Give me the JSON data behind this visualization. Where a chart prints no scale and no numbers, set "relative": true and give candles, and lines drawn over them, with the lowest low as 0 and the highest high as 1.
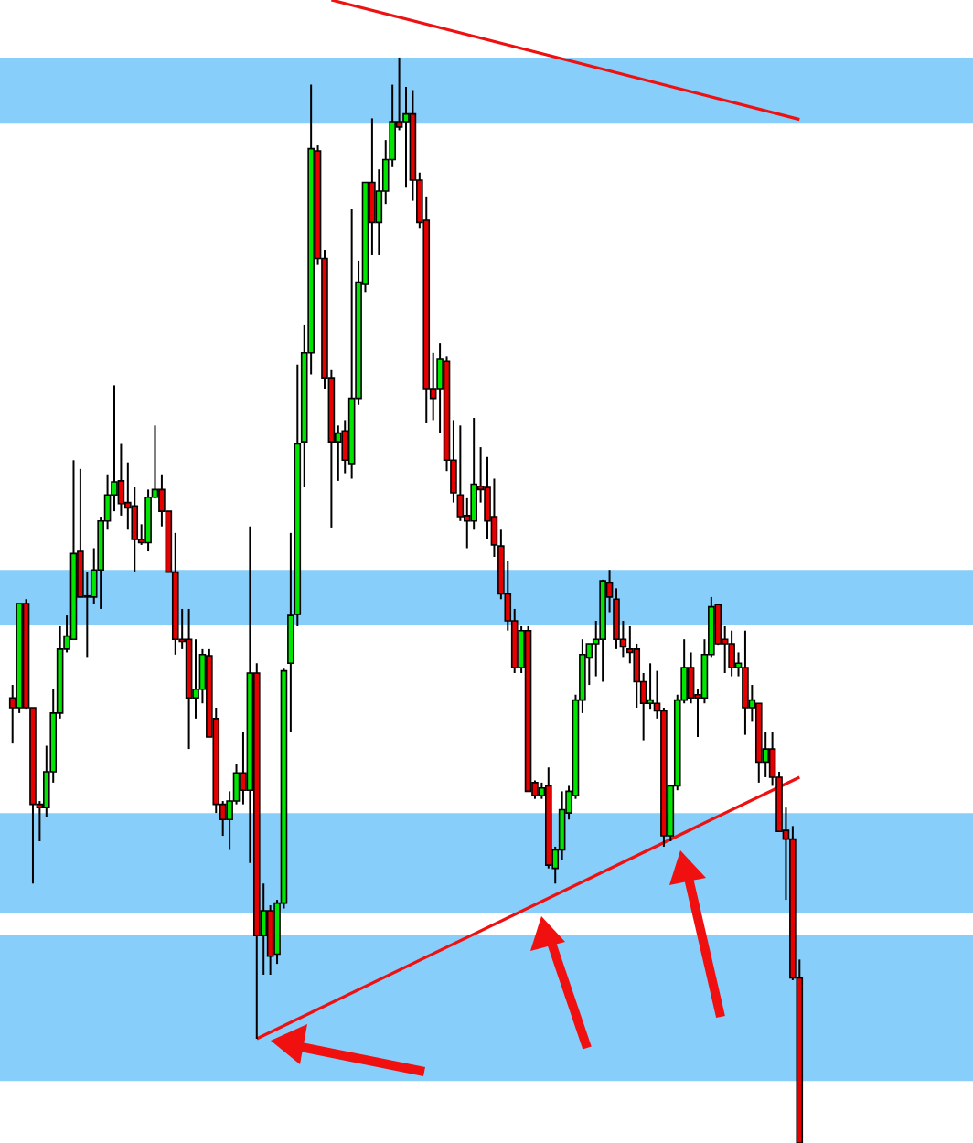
{
  "chart_data": {
    "type": "candlestick",
    "relative": true,
    "categories": [
      null,
      null,
      null,
      null,
      null,
      null,
      null,
      null,
      null,
      null,
      null,
      null,
      null,
      null,
      null,
      null,
      null,
      null,
      null,
      null,
      null,
      null,
      null,
      null,
      null,
      null,
      null,
      null,
      null,
      null,
      null,
      null,
      null,
      null,
      null,
      null,
      null,
      null,
      null,
      null,
      null,
      null,
      null,
      null,
      null,
      null,
      null,
      null,
      null,
      null,
      null,
      null,
      null,
      null,
      null,
      null,
      null,
      null,
      null,
      null,
      null,
      null,
      null,
      null,
      null,
      null,
      null,
      null,
      null,
      null,
      null,
      null,
      null,
      null,
      null,
      null,
      null,
      null,
      null,
      null,
      null,
      null,
      null,
      null,
      null,
      null,
      null,
      null,
      null,
      null,
      null,
      null,
      null,
      null,
      null,
      null,
      null,
      null,
      null,
      null,
      null,
      null,
      null,
      null,
      null,
      null,
      null,
      null,
      null,
      null,
      null,
      null,
      null,
      null,
      null,
      null,
      null
    ],
    "ohlc": [
      [
        0.41,
        0.422,
        0.368,
        0.401
      ],
      [
        0.401,
        0.497,
        0.396,
        0.497
      ],
      [
        0.497,
        0.501,
        0.4,
        0.401
      ],
      [
        0.401,
        0.401,
        0.239,
        0.312
      ],
      [
        0.312,
        0.315,
        0.278,
        0.309
      ],
      [
        0.309,
        0.366,
        0.3,
        0.342
      ],
      [
        0.342,
        0.418,
        0.332,
        0.396
      ],
      [
        0.396,
        0.476,
        0.391,
        0.455
      ],
      [
        0.455,
        0.486,
        0.452,
        0.467
      ],
      [
        0.464,
        0.629,
        0.464,
        0.543
      ],
      [
        0.545,
        0.621,
        0.503,
        0.503
      ],
      [
        0.504,
        0.526,
        0.447,
        0.503
      ],
      [
        0.503,
        0.548,
        0.497,
        0.528
      ],
      [
        0.528,
        0.577,
        0.492,
        0.573
      ],
      [
        0.573,
        0.616,
        0.565,
        0.597
      ],
      [
        0.597,
        0.698,
        0.582,
        0.609
      ],
      [
        0.61,
        0.644,
        0.578,
        0.589
      ],
      [
        0.59,
        0.627,
        0.565,
        0.585
      ],
      [
        0.587,
        0.604,
        0.526,
        0.556
      ],
      [
        0.556,
        0.57,
        0.551,
        0.553
      ],
      [
        0.553,
        0.602,
        0.545,
        0.595
      ],
      [
        0.595,
        0.661,
        0.594,
        0.602
      ],
      [
        0.602,
        0.616,
        0.568,
        0.582
      ],
      [
        0.582,
        0.582,
        0.526,
        0.526
      ],
      [
        0.526,
        0.562,
        0.45,
        0.464
      ],
      [
        0.464,
        0.492,
        0.455,
        0.462
      ],
      [
        0.464,
        0.492,
        0.363,
        0.41
      ],
      [
        0.41,
        0.464,
        0.391,
        0.418
      ],
      [
        0.418,
        0.455,
        0.405,
        0.45
      ],
      [
        0.449,
        0.455,
        0.374,
        0.374
      ],
      [
        0.391,
        0.401,
        0.304,
        0.312
      ],
      [
        0.312,
        0.315,
        0.283,
        0.298
      ],
      [
        0.298,
        0.324,
        0.27,
        0.315
      ],
      [
        0.315,
        0.349,
        0.312,
        0.341
      ],
      [
        0.341,
        0.379,
        0.312,
        0.325
      ],
      [
        0.325,
        0.568,
        0.258,
        0.433
      ],
      [
        0.433,
        0.442,
        0.096,
        0.191
      ],
      [
        0.191,
        0.239,
        0.155,
        0.214
      ],
      [
        0.214,
        0.219,
        0.155,
        0.172
      ],
      [
        0.174,
        0.224,
        0.165,
        0.221
      ],
      [
        0.221,
        0.437,
        0.216,
        0.435
      ],
      [
        0.442,
        0.562,
        0.379,
        0.486
      ],
      [
        0.487,
        0.717,
        0.476,
        0.644
      ],
      [
        0.646,
        0.754,
        0.604,
        0.728
      ],
      [
        0.728,
        0.975,
        0.708,
        0.916
      ],
      [
        0.914,
        0.919,
        0.809,
        0.815
      ],
      [
        0.815,
        0.823,
        0.695,
        0.705
      ],
      [
        0.705,
        0.712,
        0.567,
        0.646
      ],
      [
        0.646,
        0.661,
        0.61,
        0.654
      ],
      [
        0.656,
        0.666,
        0.617,
        0.629
      ],
      [
        0.626,
        0.86,
        0.612,
        0.686
      ],
      [
        0.686,
        0.813,
        0.68,
        0.793
      ],
      [
        0.791,
        0.885,
        0.784,
        0.885
      ],
      [
        0.885,
        0.944,
        0.818,
        0.848
      ],
      [
        0.848,
        0.897,
        0.818,
        0.877
      ],
      [
        0.877,
        0.924,
        0.865,
        0.906
      ],
      [
        0.906,
        0.975,
        0.899,
        0.941
      ],
      [
        0.941,
        1.0,
        0.933,
        0.936
      ],
      [
        0.941,
        0.973,
        0.88,
        0.948
      ],
      [
        0.948,
        0.97,
        0.868,
        0.887
      ],
      [
        0.887,
        0.894,
        0.843,
        0.848
      ],
      [
        0.85,
        0.872,
        0.663,
        0.695
      ],
      [
        0.695,
        0.728,
        0.666,
        0.686
      ],
      [
        0.695,
        0.737,
        0.654,
        0.722
      ],
      [
        0.72,
        0.725,
        0.619,
        0.629
      ],
      [
        0.629,
        0.666,
        0.59,
        0.599
      ],
      [
        0.597,
        0.661,
        0.573,
        0.577
      ],
      [
        0.578,
        0.594,
        0.548,
        0.573
      ],
      [
        0.573,
        0.668,
        0.565,
        0.607
      ],
      [
        0.605,
        0.641,
        0.59,
        0.602
      ],
      [
        0.604,
        0.632,
        0.556,
        0.573
      ],
      [
        0.577,
        0.612,
        0.54,
        0.551
      ],
      [
        0.55,
        0.565,
        0.501,
        0.506
      ],
      [
        0.506,
        0.536,
        0.472,
        0.481
      ],
      [
        0.481,
        0.492,
        0.433,
        0.438
      ],
      [
        0.438,
        0.476,
        0.433,
        0.472
      ],
      [
        0.472,
        0.476,
        0.324,
        0.324
      ],
      [
        0.332,
        0.334,
        0.317,
        0.32
      ],
      [
        0.32,
        0.332,
        0.317,
        0.327
      ],
      [
        0.329,
        0.346,
        0.253,
        0.256
      ],
      [
        0.253,
        0.273,
        0.239,
        0.27
      ],
      [
        0.27,
        0.324,
        0.261,
        0.307
      ],
      [
        0.304,
        0.329,
        0.298,
        0.324
      ],
      [
        0.32,
        0.413,
        0.317,
        0.408
      ],
      [
        0.408,
        0.464,
        0.396,
        0.45
      ],
      [
        0.447,
        0.46,
        0.422,
        0.46
      ],
      [
        0.46,
        0.481,
        0.43,
        0.464
      ],
      [
        0.464,
        0.519,
        0.425,
        0.518
      ],
      [
        0.516,
        0.528,
        0.489,
        0.503
      ],
      [
        0.501,
        0.511,
        0.455,
        0.464
      ],
      [
        0.464,
        0.481,
        0.447,
        0.457
      ],
      [
        0.455,
        0.476,
        0.442,
        0.452
      ],
      [
        0.455,
        0.46,
        0.401,
        0.425
      ],
      [
        0.425,
        0.433,
        0.371,
        0.405
      ],
      [
        0.405,
        0.442,
        0.4,
        0.408
      ],
      [
        0.405,
        0.435,
        0.391,
        0.398
      ],
      [
        0.398,
        0.401,
        0.273,
        0.283
      ],
      [
        0.283,
        0.329,
        0.278,
        0.329
      ],
      [
        0.329,
        0.413,
        0.325,
        0.408
      ],
      [
        0.408,
        0.464,
        0.405,
        0.438
      ],
      [
        0.438,
        0.452,
        0.405,
        0.41
      ],
      [
        0.413,
        0.418,
        0.374,
        0.41
      ],
      [
        0.41,
        0.464,
        0.405,
        0.45
      ],
      [
        0.45,
        0.503,
        0.447,
        0.494
      ],
      [
        0.496,
        0.497,
        0.459,
        0.46
      ],
      [
        0.464,
        0.476,
        0.433,
        0.46
      ],
      [
        0.46,
        0.472,
        0.43,
        0.438
      ],
      [
        0.438,
        0.452,
        0.43,
        0.442
      ],
      [
        0.438,
        0.472,
        0.376,
        0.401
      ],
      [
        0.401,
        0.422,
        0.388,
        0.408
      ],
      [
        0.405,
        0.405,
        0.332,
        0.351
      ],
      [
        0.351,
        0.379,
        0.337,
        0.363
      ],
      [
        0.363,
        0.379,
        0.329,
        0.337
      ],
      [
        0.337,
        0.342,
        0.287,
        0.287
      ],
      [
        0.288,
        0.309,
        0.224,
        0.28
      ],
      [
        0.28,
        0.292,
        0.15,
        0.152
      ],
      [
        0.152,
        0.169,
        0.0,
        0.0
      ]
    ],
    "colors": [
      "#e60000",
      "#00e600",
      "#e60000",
      "#e60000",
      "#e60000",
      "#00e600",
      "#00e600",
      "#00e600",
      "#00e600",
      "#00e600",
      "#e60000",
      "#e60000",
      "#00e600",
      "#00e600",
      "#00e600",
      "#00e600",
      "#e60000",
      "#e60000",
      "#e60000",
      "#e60000",
      "#00e600",
      "#00e600",
      "#e60000",
      "#e60000",
      "#e60000",
      "#e60000",
      "#e60000",
      "#00e600",
      "#00e600",
      "#e60000",
      "#e60000",
      "#e60000",
      "#00e600",
      "#00e600",
      "#e60000",
      "#00e600",
      "#e60000",
      "#00e600",
      "#e60000",
      "#00e600",
      "#00e600",
      "#00e600",
      "#00e600",
      "#00e600",
      "#00e600",
      "#e60000",
      "#e60000",
      "#e60000",
      "#00e600",
      "#e60000",
      "#00e600",
      "#00e600",
      "#00e600",
      "#e60000",
      "#00e600",
      "#00e600",
      "#00e600",
      "#e60000",
      "#00e600",
      "#e60000",
      "#e60000",
      "#e60000",
      "#e60000",
      "#00e600",
      "#e60000",
      "#e60000",
      "#e60000",
      "#e60000",
      "#00e600",
      "#e60000",
      "#e60000",
      "#e60000",
      "#e60000",
      "#e60000",
      "#e60000",
      "#00e600",
      "#e60000",
      "#e60000",
      "#00e600",
      "#e60000",
      "#00e600",
      "#00e600",
      "#00e600",
      "#00e600",
      "#00e600",
      "#00e600",
      "#00e600",
      "#00e600",
      "#e60000",
      "#e60000",
      "#e60000",
      "#e60000",
      "#e60000",
      "#e60000",
      "#00e600",
      "#e60000",
      "#e60000",
      "#00e600",
      "#00e600",
      "#00e600",
      "#e60000",
      "#e60000",
      "#00e600",
      "#00e600",
      "#e60000",
      "#e60000",
      "#e60000",
      "#00e600",
      "#e60000",
      "#00e600",
      "#e60000",
      "#00e600",
      "#e60000",
      "#e60000",
      "#e60000",
      "#e60000",
      "#e60000"
    ],
    "series": [
      {
        "type": "line",
        "color": "#ee1111",
        "values": [
          null,
          null,
          null,
          null,
          null,
          null,
          null,
          null,
          null,
          null,
          null,
          null,
          null,
          null,
          null,
          null,
          null,
          null,
          null,
          null,
          null,
          null,
          null,
          null,
          null,
          null,
          null,
          null,
          null,
          null,
          null,
          null,
          null,
          null,
          null,
          null,
          null,
          null,
          null,
          null,
          null,
          null,
          null,
          null,
          null,
          null,
          null,
          1.053,
          null,
          null,
          null,
          null,
          null,
          null,
          null,
          null,
          null,
          null,
          null,
          null,
          null,
          null,
          null,
          null,
          null,
          null,
          null,
          null,
          null,
          null,
          null,
          null,
          null,
          null,
          null,
          null,
          null,
          null,
          null,
          null,
          null,
          null,
          null,
          null,
          null,
          null,
          null,
          null,
          null,
          null,
          null,
          null,
          null,
          null,
          null,
          null,
          null,
          null,
          null,
          null,
          null,
          null,
          null,
          null,
          null,
          null,
          null,
          null,
          null,
          null,
          null,
          null,
          null,
          null,
          null,
          null,
          0.943
        ]
      },
      {
        "type": "line",
        "color": "#ee1111",
        "values": [
          null,
          null,
          null,
          null,
          null,
          null,
          null,
          null,
          null,
          null,
          null,
          null,
          null,
          null,
          null,
          null,
          null,
          null,
          null,
          null,
          null,
          null,
          null,
          null,
          null,
          null,
          null,
          null,
          null,
          null,
          null,
          null,
          null,
          null,
          null,
          null,
          0.096,
          null,
          null,
          null,
          null,
          null,
          null,
          null,
          null,
          null,
          null,
          null,
          null,
          null,
          null,
          null,
          null,
          null,
          null,
          null,
          null,
          null,
          null,
          null,
          null,
          null,
          null,
          null,
          null,
          null,
          null,
          null,
          null,
          null,
          null,
          null,
          null,
          null,
          null,
          null,
          null,
          null,
          null,
          null,
          null,
          null,
          null,
          null,
          null,
          null,
          null,
          null,
          null,
          null,
          null,
          null,
          null,
          null,
          null,
          null,
          null,
          null,
          null,
          null,
          null,
          null,
          null,
          null,
          null,
          null,
          null,
          null,
          null,
          null,
          null,
          null,
          null,
          null,
          null,
          null,
          0.337
        ]
      }
    ],
    "bands": [
      {
        "axis": "y",
        "from": 0.939,
        "to": 1.0,
        "color": "#87cefa"
      },
      {
        "axis": "y",
        "from": 0.477,
        "to": 0.528,
        "color": "#87cefa"
      },
      {
        "axis": "y",
        "from": 0.212,
        "to": 0.304,
        "color": "#87cefa"
      },
      {
        "axis": "y",
        "from": 0.057,
        "to": 0.192,
        "color": "#87cefa"
      }
    ]
  }
}
